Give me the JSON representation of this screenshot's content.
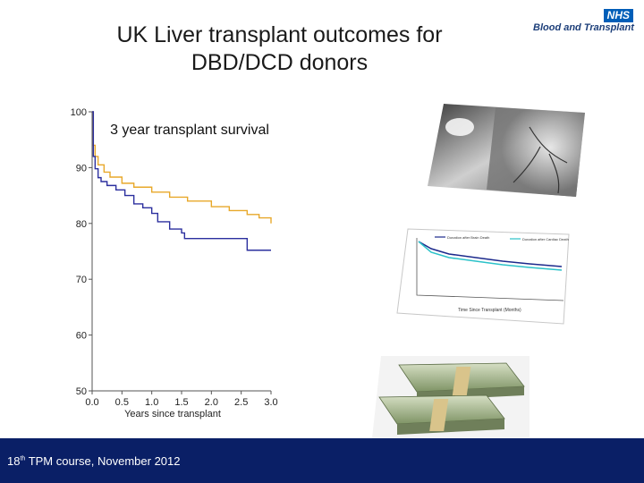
{
  "slide": {
    "title_line1": "UK Liver transplant outcomes for",
    "title_line2": "DBD/DCD donors",
    "logo": {
      "nhs": "NHS",
      "org": "Blood and Transplant"
    },
    "footer": {
      "ordinal": "18",
      "suffix": "th",
      "rest": " TPM course, November 2012"
    }
  },
  "colors": {
    "dbd": "#e8a82a",
    "dcd": "#2b2f9e",
    "footer_bg": "#0a1f66"
  },
  "thumbnail": {
    "legend_dbd": "Donation after Brain Death",
    "legend_dcd": "Donation after Cardiac Death",
    "xlabel": "Time Since Transplant (Months)"
  },
  "chart_data": {
    "type": "line",
    "title": "3 year transplant survival",
    "xlabel": "Years since transplant",
    "ylabel": "",
    "xlim": [
      0,
      3
    ],
    "ylim": [
      50,
      100
    ],
    "xticks": [
      "0.0",
      "0.5",
      "1.0",
      "1.5",
      "2.0",
      "2.5",
      "3.0"
    ],
    "yticks": [
      "50",
      "60",
      "70",
      "80",
      "90",
      "100"
    ],
    "grid": false,
    "series": [
      {
        "key": "dbd",
        "x": [
          0,
          0.02,
          0.05,
          0.1,
          0.2,
          0.3,
          0.5,
          0.7,
          1.0,
          1.3,
          1.6,
          2.0,
          2.3,
          2.6,
          2.8,
          3.0
        ],
        "y": [
          100,
          94,
          92,
          90.5,
          89.2,
          88.3,
          87.2,
          86.5,
          85.6,
          84.7,
          84.0,
          83.0,
          82.3,
          81.6,
          81.0,
          80.0
        ]
      },
      {
        "key": "dcd",
        "x": [
          0,
          0.02,
          0.05,
          0.1,
          0.15,
          0.25,
          0.4,
          0.55,
          0.7,
          0.85,
          1.0,
          1.1,
          1.3,
          1.5,
          1.55,
          2.0,
          2.55,
          2.6,
          3.0
        ],
        "y": [
          100,
          92,
          89.8,
          88.2,
          87.5,
          86.8,
          86.0,
          85.0,
          83.5,
          82.8,
          81.8,
          80.3,
          79.0,
          78.3,
          77.3,
          77.3,
          77.3,
          75.2,
          75.2
        ]
      }
    ]
  }
}
